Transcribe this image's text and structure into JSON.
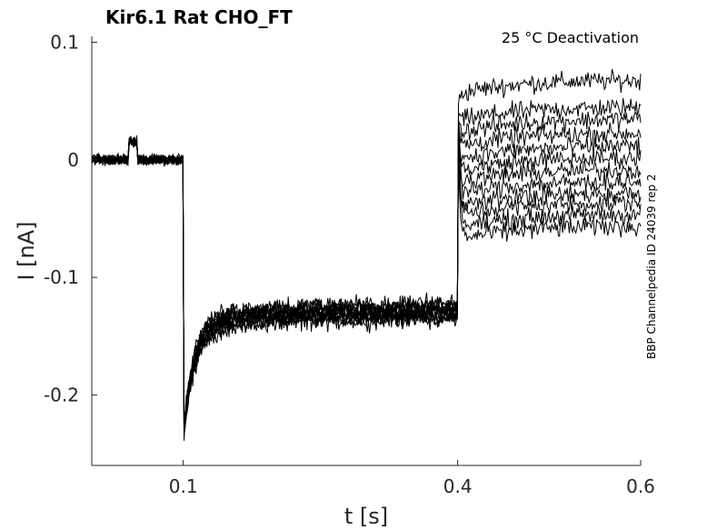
{
  "chart_data": {
    "type": "line",
    "title": "Kir6.1  Rat  CHO_FT",
    "annotation": "25 °C  Deactivation",
    "side_note": "BBP Channelpedia ID 24039 rep 2",
    "xlabel": "t [s]",
    "ylabel": "I [nA]",
    "xlim": [
      0.0,
      0.6
    ],
    "ylim": [
      -0.26,
      0.105
    ],
    "xticks": [
      0.1,
      0.4,
      0.6
    ],
    "xtick_labels": [
      "0.1",
      "0.4",
      "0.6"
    ],
    "yticks": [
      0.1,
      0.0,
      -0.1,
      -0.2
    ],
    "ytick_labels": [
      "0.1",
      "0",
      "-0.1",
      "-0.2"
    ],
    "grid": false,
    "protocol": {
      "baseline": 0.0,
      "artifact_window": [
        0.04,
        0.05
      ],
      "artifact_level": 0.015,
      "hyperpolarize_start": 0.1,
      "peak_current": -0.225,
      "hyperpolarize_steady": -0.128,
      "test_step_start": 0.4,
      "test_step_end": 0.6,
      "onset_spike": 0.055
    },
    "series": [
      {
        "test_level": 0.068
      },
      {
        "test_level": 0.045
      },
      {
        "test_level": 0.035
      },
      {
        "test_level": 0.023
      },
      {
        "test_level": 0.012
      },
      {
        "test_level": 0.002
      },
      {
        "test_level": -0.008
      },
      {
        "test_level": -0.018
      },
      {
        "test_level": -0.028
      },
      {
        "test_level": -0.036
      },
      {
        "test_level": -0.046
      },
      {
        "test_level": -0.056
      }
    ],
    "colors": {
      "trace": "#000000",
      "axis": "#262626"
    }
  }
}
